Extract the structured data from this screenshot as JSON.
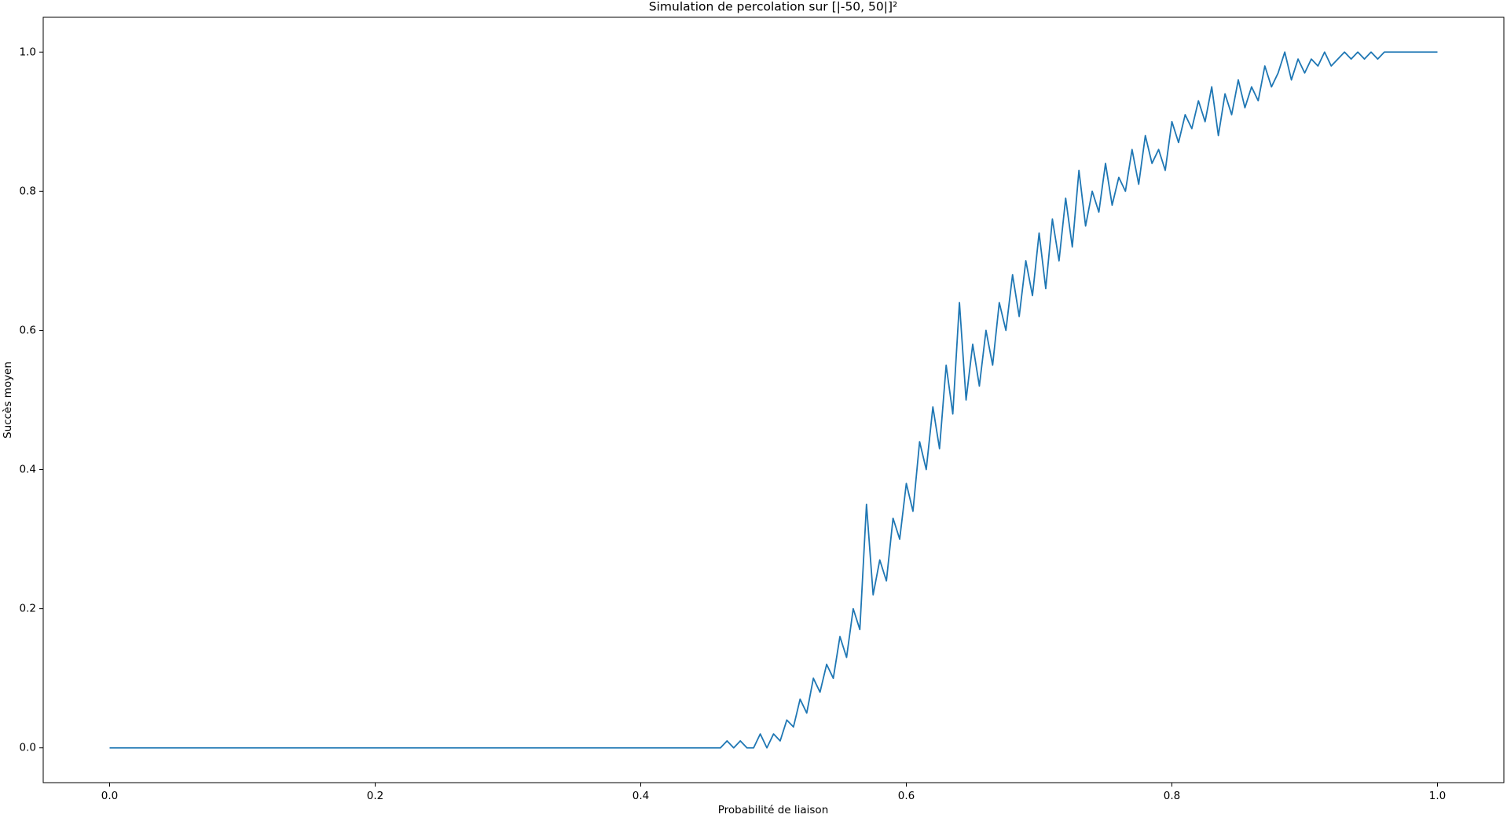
{
  "chart_data": {
    "type": "line",
    "title": "Simulation de percolation sur [|-50, 50|]²",
    "xlabel": "Probabilité de liaison",
    "ylabel": "Succès moyen",
    "color": "#1f77b4",
    "xlim": [
      -0.05,
      1.05
    ],
    "ylim": [
      -0.05,
      1.05
    ],
    "xticks": [
      {
        "value": 0,
        "label": "0.0"
      },
      0.2,
      0.4,
      0.6,
      0.8,
      {
        "value": 1,
        "label": "1.0"
      }
    ],
    "yticks": [
      {
        "value": 0,
        "label": "0.0"
      },
      0.2,
      0.4,
      0.6,
      0.8,
      {
        "value": 1,
        "label": "1.0"
      }
    ],
    "x": [
      0,
      0.46,
      0.465,
      0.47,
      0.475,
      0.48,
      0.485,
      0.49,
      0.495,
      0.5,
      0.505,
      0.51,
      0.515,
      0.52,
      0.525,
      0.53,
      0.535,
      0.54,
      0.545,
      0.55,
      0.555,
      0.56,
      0.565,
      0.57,
      0.575,
      0.58,
      0.585,
      0.59,
      0.595,
      0.6,
      0.605,
      0.61,
      0.615,
      0.62,
      0.625,
      0.63,
      0.635,
      0.64,
      0.645,
      0.65,
      0.655,
      0.66,
      0.665,
      0.67,
      0.675,
      0.68,
      0.685,
      0.69,
      0.695,
      0.7,
      0.705,
      0.71,
      0.715,
      0.72,
      0.725,
      0.73,
      0.735,
      0.74,
      0.745,
      0.75,
      0.755,
      0.76,
      0.765,
      0.77,
      0.775,
      0.78,
      0.785,
      0.79,
      0.795,
      0.8,
      0.805,
      0.81,
      0.815,
      0.82,
      0.825,
      0.83,
      0.835,
      0.84,
      0.845,
      0.85,
      0.855,
      0.86,
      0.865,
      0.87,
      0.875,
      0.88,
      0.885,
      0.89,
      0.895,
      0.9,
      0.905,
      0.91,
      0.915,
      0.92,
      0.925,
      0.93,
      0.935,
      0.94,
      0.945,
      0.95,
      0.955,
      0.96,
      0.965,
      0.97,
      1.0
    ],
    "values": [
      0,
      0,
      0.01,
      0,
      0.01,
      0,
      0,
      0.02,
      0,
      0.02,
      0.01,
      0.04,
      0.03,
      0.07,
      0.05,
      0.1,
      0.08,
      0.12,
      0.1,
      0.16,
      0.13,
      0.2,
      0.17,
      0.35,
      0.22,
      0.27,
      0.24,
      0.33,
      0.3,
      0.38,
      0.34,
      0.44,
      0.4,
      0.49,
      0.43,
      0.55,
      0.48,
      0.64,
      0.5,
      0.58,
      0.52,
      0.6,
      0.55,
      0.64,
      0.6,
      0.68,
      0.62,
      0.7,
      0.65,
      0.74,
      0.66,
      0.76,
      0.7,
      0.79,
      0.72,
      0.83,
      0.75,
      0.8,
      0.77,
      0.84,
      0.78,
      0.82,
      0.8,
      0.86,
      0.81,
      0.88,
      0.84,
      0.86,
      0.83,
      0.9,
      0.87,
      0.91,
      0.89,
      0.93,
      0.9,
      0.95,
      0.88,
      0.94,
      0.91,
      0.96,
      0.92,
      0.95,
      0.93,
      0.98,
      0.95,
      0.97,
      1.0,
      0.96,
      0.99,
      0.97,
      0.99,
      0.98,
      1.0,
      0.98,
      0.99,
      1.0,
      0.99,
      1.0,
      0.99,
      1.0,
      0.99,
      1.0,
      1.0,
      1.0,
      1.0
    ]
  }
}
